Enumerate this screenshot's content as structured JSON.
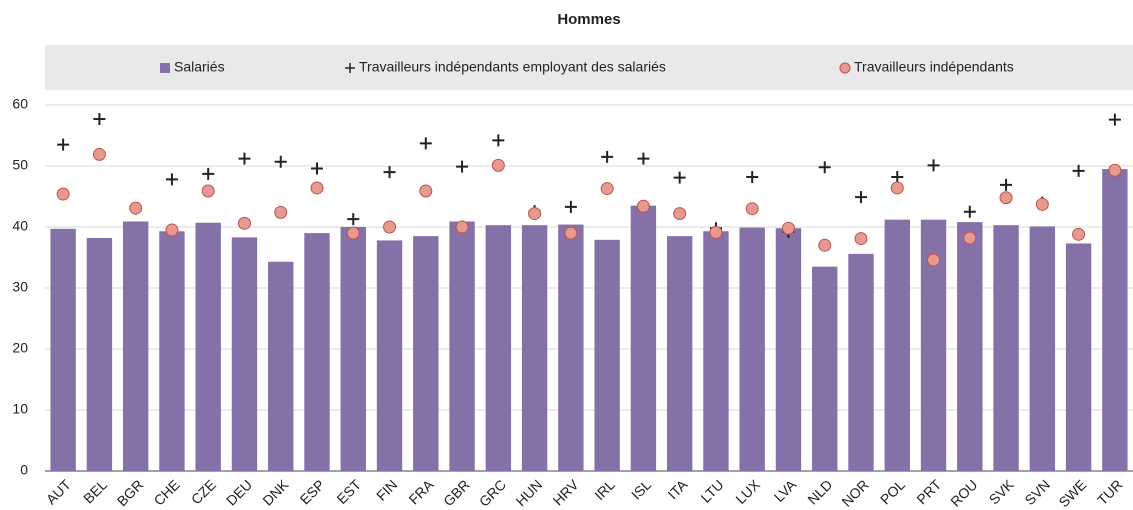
{
  "chart_data": {
    "type": "bar",
    "title": "Hommes",
    "categories": [
      "AUT",
      "BEL",
      "BGR",
      "CHE",
      "CZE",
      "DEU",
      "DNK",
      "ESP",
      "EST",
      "FIN",
      "FRA",
      "GBR",
      "GRC",
      "HUN",
      "HRV",
      "IRL",
      "ISL",
      "ITA",
      "LTU",
      "LUX",
      "LVA",
      "NLD",
      "NOR",
      "POL",
      "PRT",
      "ROU",
      "SVK",
      "SVN",
      "SWE",
      "TUR"
    ],
    "series": [
      {
        "name": "Salariés",
        "marker": "bar",
        "color": "#8570a8",
        "values": [
          39.7,
          38.2,
          40.9,
          39.3,
          40.7,
          38.3,
          34.3,
          39.0,
          40.0,
          37.8,
          38.5,
          40.9,
          40.3,
          40.3,
          40.4,
          37.9,
          43.5,
          38.5,
          39.3,
          39.9,
          39.8,
          33.5,
          35.6,
          41.2,
          41.2,
          40.8,
          40.3,
          40.1,
          37.3,
          49.5
        ]
      },
      {
        "name": "Travailleurs indépendants employant des salariés",
        "marker": "plus",
        "color": "#222222",
        "values": [
          53.5,
          57.7,
          43.0,
          47.8,
          48.7,
          51.2,
          50.7,
          49.6,
          41.3,
          49.0,
          53.7,
          49.9,
          54.2,
          42.6,
          43.3,
          51.5,
          51.2,
          48.1,
          39.8,
          48.2,
          39.2,
          49.8,
          44.9,
          48.2,
          50.1,
          42.5,
          46.9,
          44.0,
          49.2,
          57.6
        ]
      },
      {
        "name": "Travailleurs indépendants",
        "marker": "circle",
        "color": "#e59a8f",
        "values": [
          45.4,
          51.9,
          43.1,
          39.5,
          45.9,
          40.6,
          42.4,
          46.4,
          39.0,
          40.0,
          45.9,
          40.0,
          50.1,
          42.2,
          39.0,
          46.3,
          43.4,
          42.2,
          39.1,
          43.0,
          39.8,
          37.0,
          38.1,
          46.4,
          34.6,
          38.2,
          44.8,
          43.7,
          38.8,
          49.3
        ]
      }
    ],
    "ylim": [
      0,
      60
    ],
    "yticks": [
      0,
      10,
      20,
      30,
      40,
      50,
      60
    ],
    "grid": true
  }
}
